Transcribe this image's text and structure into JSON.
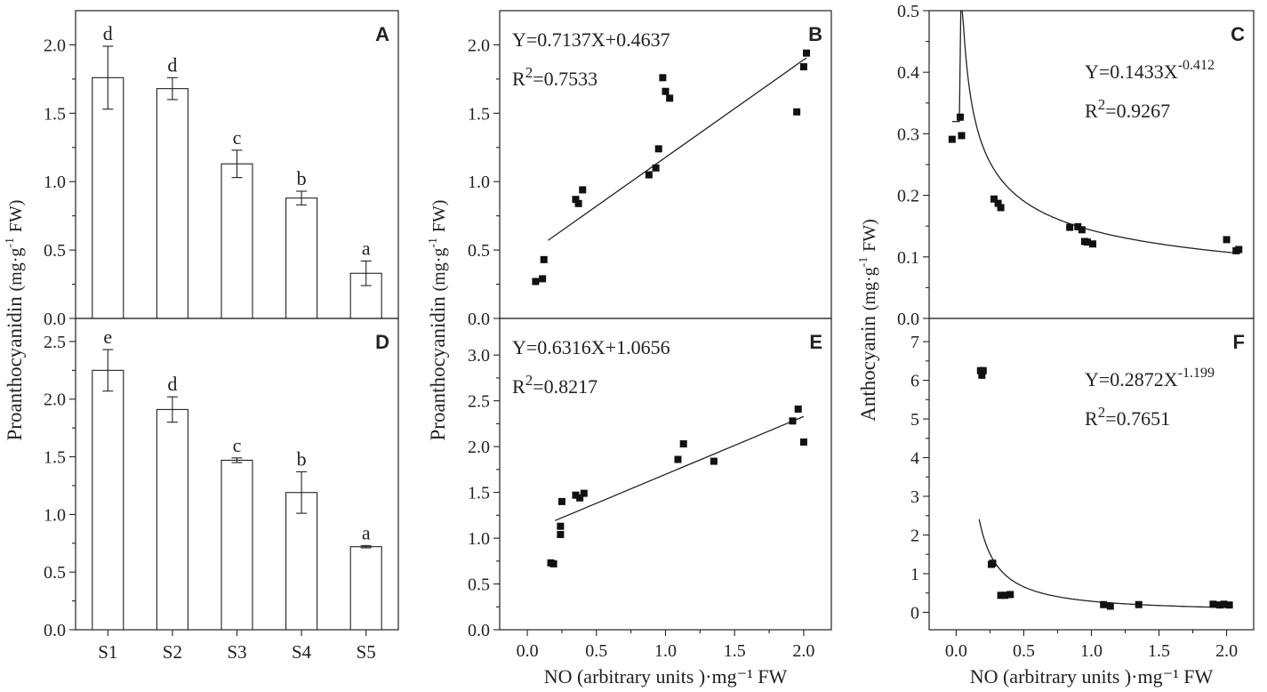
{
  "chart_data": [
    {
      "id": "A",
      "panel_label": "A",
      "type": "bar",
      "categories": [
        "S1",
        "S2",
        "S3",
        "S4",
        "S5"
      ],
      "values": [
        1.76,
        1.68,
        1.13,
        0.88,
        0.33
      ],
      "errors": [
        0.23,
        0.08,
        0.1,
        0.05,
        0.09
      ],
      "letters": [
        "d",
        "d",
        "c",
        "b",
        "a"
      ],
      "ylim": [
        0,
        2.25
      ],
      "ticks": [
        0.0,
        0.5,
        1.0,
        1.5,
        2.0
      ],
      "tick_labels": [
        "0.0",
        "0.5",
        "1.0",
        "1.5",
        "2.0"
      ]
    },
    {
      "id": "D",
      "panel_label": "D",
      "type": "bar",
      "categories": [
        "S1",
        "S2",
        "S3",
        "S4",
        "S5"
      ],
      "values": [
        2.25,
        1.91,
        1.47,
        1.19,
        0.72
      ],
      "errors": [
        0.18,
        0.11,
        0.02,
        0.18,
        0.01
      ],
      "letters": [
        "e",
        "d",
        "c",
        "b",
        "a"
      ],
      "ylim": [
        0,
        2.7
      ],
      "ticks": [
        0.0,
        0.5,
        1.0,
        1.5,
        2.0,
        2.5
      ],
      "tick_labels": [
        "0.0",
        "0.5",
        "1.0",
        "1.5",
        "2.0",
        "2.5"
      ]
    },
    {
      "id": "B",
      "panel_label": "B",
      "type": "scatter",
      "fit": "linear",
      "slope": 0.7137,
      "intercept": 0.4637,
      "equation": "Y=0.7137X+0.4637",
      "r2_prefix": "R",
      "r2_sup": "2",
      "r2_value": "=0.7533",
      "x": [
        0.06,
        0.11,
        0.12,
        0.35,
        0.37,
        0.4,
        0.88,
        0.93,
        0.95,
        0.98,
        1.0,
        1.03,
        1.95,
        2.0,
        2.02
      ],
      "y": [
        0.27,
        0.29,
        0.43,
        0.87,
        0.84,
        0.94,
        1.05,
        1.1,
        1.24,
        1.76,
        1.66,
        1.61,
        1.51,
        1.84,
        1.94
      ],
      "fit_x": [
        0.15,
        2.02
      ],
      "xlim": [
        -0.2,
        2.2
      ],
      "ylim": [
        0,
        2.25
      ],
      "yticks": [
        0.0,
        0.5,
        1.0,
        1.5,
        2.0
      ],
      "ytick_labels": [
        "0.0",
        "0.5",
        "1.0",
        "1.5",
        "2.0"
      ]
    },
    {
      "id": "E",
      "panel_label": "E",
      "type": "scatter",
      "fit": "linear",
      "slope": 0.6316,
      "intercept": 1.0656,
      "equation": "Y=0.6316X+1.0656",
      "r2_prefix": "R",
      "r2_sup": "2",
      "r2_value": "=0.8217",
      "x": [
        0.17,
        0.19,
        0.24,
        0.24,
        0.25,
        0.35,
        0.38,
        0.41,
        1.09,
        1.13,
        1.35,
        1.92,
        1.96,
        2.0
      ],
      "y": [
        0.73,
        0.72,
        1.04,
        1.13,
        1.4,
        1.47,
        1.44,
        1.49,
        1.86,
        2.03,
        1.84,
        2.28,
        2.41,
        2.05
      ],
      "fit_x": [
        0.2,
        2.0
      ],
      "xlim": [
        -0.2,
        2.2
      ],
      "ylim": [
        0,
        3.4
      ],
      "xticks": [
        0.0,
        0.5,
        1.0,
        1.5,
        2.0
      ],
      "xtick_labels": [
        "0.0",
        "0.5",
        "1.0",
        "1.5",
        "2.0"
      ],
      "yticks": [
        0.0,
        0.5,
        1.0,
        1.5,
        2.0,
        2.5,
        3.0
      ],
      "ytick_labels": [
        "0.0",
        "0.5",
        "1.0",
        "1.5",
        "2.0",
        "2.5",
        "3.0"
      ],
      "xlabel": "NO (arbitrary units )·mg⁻¹ FW"
    },
    {
      "id": "C",
      "panel_label": "C",
      "type": "scatter",
      "fit": "power",
      "a": 0.1433,
      "b": -0.412,
      "equation": "Y=0.1433X",
      "exp_sup": "-0.412",
      "r2_prefix": "R",
      "r2_sup": "2",
      "r2_value": "=0.9267",
      "x": [
        -0.03,
        0.03,
        0.04,
        0.28,
        0.31,
        0.33,
        0.84,
        0.9,
        0.93,
        0.95,
        0.97,
        1.01,
        2.0,
        2.07,
        2.09
      ],
      "y": [
        0.291,
        0.327,
        0.297,
        0.194,
        0.187,
        0.18,
        0.148,
        0.149,
        0.144,
        0.125,
        0.124,
        0.121,
        0.128,
        0.11,
        0.112
      ],
      "fit_x": [
        -0.03,
        2.1
      ],
      "xlim": [
        -0.2,
        2.2
      ],
      "ylim": [
        0,
        0.5
      ],
      "yticks": [
        0.0,
        0.1,
        0.2,
        0.3,
        0.4,
        0.5
      ],
      "ytick_labels": [
        "0.0",
        "0.1",
        "0.2",
        "0.3",
        "0.4",
        "0.5"
      ]
    },
    {
      "id": "F",
      "panel_label": "F",
      "type": "scatter",
      "fit": "power",
      "a": 0.2872,
      "b": -1.199,
      "equation": "Y=0.2872X",
      "exp_sup": "-1.199",
      "r2_prefix": "R",
      "r2_sup": "2",
      "r2_value": "=0.7651",
      "x": [
        0.18,
        0.19,
        0.2,
        0.26,
        0.27,
        0.33,
        0.36,
        0.4,
        1.09,
        1.14,
        1.35,
        1.9,
        1.95,
        1.98,
        2.02
      ],
      "y": [
        6.25,
        6.13,
        6.25,
        1.24,
        1.27,
        0.44,
        0.44,
        0.46,
        0.2,
        0.16,
        0.2,
        0.21,
        0.19,
        0.21,
        0.19
      ],
      "fit_x": [
        0.17,
        2.02
      ],
      "xlim": [
        -0.2,
        2.2
      ],
      "ylim": [
        -0.45,
        7.6
      ],
      "xticks": [
        0.0,
        0.5,
        1.0,
        1.5,
        2.0
      ],
      "xtick_labels": [
        "0.0",
        "0.5",
        "1.0",
        "1.5",
        "2.0"
      ],
      "yticks": [
        0,
        1,
        2,
        3,
        4,
        5,
        6,
        7
      ],
      "ytick_labels": [
        "0",
        "1",
        "2",
        "3",
        "4",
        "5",
        "6",
        "7"
      ],
      "xlabel": "NO (arbitrary units )·mg⁻¹ FW"
    }
  ],
  "ylabels": {
    "proanthocyanidin_main": "Proanthocyanidin",
    "proanthocyanidin_unit": "(mg·g",
    "unit_sup": "-1",
    "unit_tail": "FW)",
    "anthocyanin_main": "Anthocyanin",
    "anthocyanin_unit": "(mg·g"
  }
}
